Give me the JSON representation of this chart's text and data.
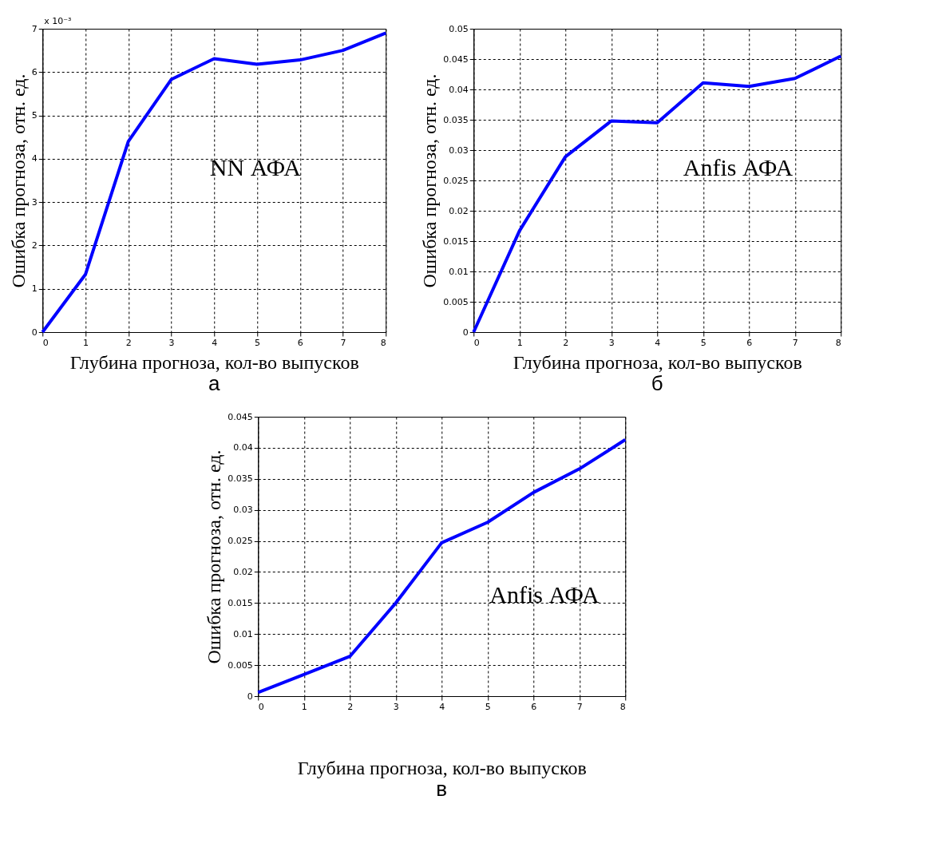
{
  "chart_data": [
    {
      "type": "line",
      "title": "а",
      "xlabel": "Глубина прогноза, кол-во выпусков",
      "ylabel": "Ошибка прогноза, отн. ед.",
      "annotations": [
        "x 10⁻³"
      ],
      "x": [
        0,
        1,
        2,
        3,
        4,
        5,
        6,
        7,
        8
      ],
      "xlim": [
        0,
        8
      ],
      "xticks": [
        0,
        1,
        2,
        3,
        4,
        5,
        6,
        7,
        8
      ],
      "ylim": [
        0,
        7
      ],
      "yticks": [
        0,
        1,
        2,
        3,
        4,
        5,
        6,
        7
      ],
      "grid": true,
      "marker": "none",
      "line_style": "solid",
      "series": [
        {
          "name": "NN АФА",
          "color": "#0000ff",
          "values": [
            0,
            1.33,
            4.4,
            5.83,
            6.31,
            6.18,
            6.28,
            6.5,
            6.9
          ]
        }
      ]
    },
    {
      "type": "line",
      "title": "б",
      "xlabel": "Глубина прогноза, кол-во выпусков",
      "ylabel": "Ошибка прогноза, отн. ед.",
      "x": [
        0,
        1,
        2,
        3,
        4,
        5,
        6,
        7,
        8
      ],
      "xlim": [
        0,
        8
      ],
      "xticks": [
        0,
        1,
        2,
        3,
        4,
        5,
        6,
        7,
        8
      ],
      "ylim": [
        0,
        0.05
      ],
      "yticks": [
        0,
        0.005,
        0.01,
        0.015,
        0.02,
        0.025,
        0.03,
        0.035,
        0.04,
        0.045,
        0.05
      ],
      "grid": true,
      "marker": "none",
      "line_style": "solid",
      "series": [
        {
          "name": "Anfis АФА",
          "color": "#0000ff",
          "values": [
            0,
            0.0167,
            0.0289,
            0.0348,
            0.0345,
            0.0411,
            0.0405,
            0.0418,
            0.0455
          ]
        }
      ]
    },
    {
      "type": "line",
      "title": "в",
      "xlabel": "Глубина прогноза, кол-во выпусков",
      "ylabel": "Ошибка прогноза, отн. ед.",
      "x": [
        0,
        1,
        2,
        3,
        4,
        5,
        6,
        7,
        8
      ],
      "xlim": [
        0,
        8
      ],
      "xticks": [
        0,
        1,
        2,
        3,
        4,
        5,
        6,
        7,
        8
      ],
      "ylim": [
        0,
        0.045
      ],
      "yticks": [
        0,
        0.005,
        0.01,
        0.015,
        0.02,
        0.025,
        0.03,
        0.035,
        0.04,
        0.045
      ],
      "grid": true,
      "marker": "none",
      "line_style": "solid",
      "series": [
        {
          "name": "Anfis АФА",
          "color": "#0000ff",
          "values": [
            0.0006,
            0.0035,
            0.0064,
            0.015,
            0.0247,
            0.028,
            0.0328,
            0.0366,
            0.0413
          ]
        }
      ]
    }
  ]
}
